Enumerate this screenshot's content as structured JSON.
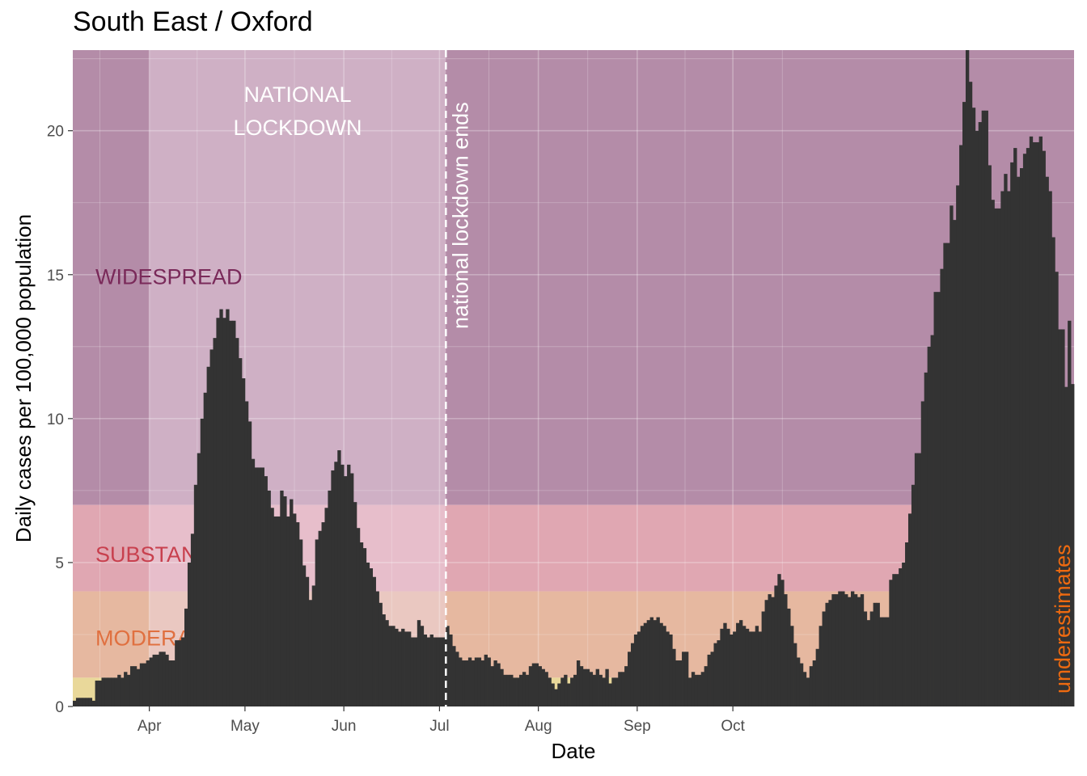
{
  "chart_data": {
    "type": "bar",
    "title": "South East / Oxford",
    "xlabel": "Date",
    "ylabel": "Daily cases per 100,000 population",
    "ylim": [
      0,
      22.8
    ],
    "yticks": [
      0,
      5,
      10,
      15,
      20
    ],
    "x_ticks": [
      "Apr",
      "May",
      "Jun",
      "Jul",
      "Aug",
      "Sep",
      "Oct"
    ],
    "grid": true,
    "bar_color": "#333333",
    "zones": [
      {
        "label": "WIDESPREAD",
        "from": 7,
        "to": 22.8,
        "color": "#b48ca8"
      },
      {
        "label": "SUBSTANTIAL",
        "from": 4,
        "to": 7,
        "color": "#e0a7b2"
      },
      {
        "label": "MODERATE",
        "from": 1,
        "to": 4,
        "color": "#e6b8a0"
      },
      {
        "label": "",
        "from": 0,
        "to": 1,
        "color": "#e9d89a"
      }
    ],
    "zone_label_colors": {
      "WIDESPREAD": "#7a2a5a",
      "SUBSTANTIAL": "#c8404e",
      "MODERATE": "#e07040"
    },
    "lockdown": {
      "label_line1": "NATIONAL",
      "label_line2": "LOCKDOWN",
      "start_day": 24,
      "end_day": 117,
      "overlay_color": "#f0dce8"
    },
    "annotations": {
      "lockdown_end": "national lockdown ends",
      "underestimates": "underestimates",
      "underestimates_color": "#ee6a10"
    },
    "start_date": "2020-03-08",
    "values": [
      0.2,
      0.3,
      0.3,
      0.3,
      0.3,
      0.3,
      0.2,
      0.9,
      0.9,
      1.0,
      1.0,
      1.0,
      1.0,
      1.0,
      1.1,
      1.0,
      1.2,
      1.1,
      1.4,
      1.4,
      1.3,
      1.5,
      1.5,
      1.6,
      1.7,
      1.8,
      1.8,
      1.9,
      1.9,
      1.8,
      1.6,
      1.6,
      2.3,
      2.3,
      2.4,
      3.4,
      5.0,
      6.0,
      7.7,
      8.8,
      10.0,
      10.9,
      11.8,
      12.4,
      12.8,
      13.5,
      13.8,
      13.5,
      13.8,
      13.4,
      13.4,
      12.8,
      12.1,
      11.4,
      10.6,
      9.9,
      8.6,
      8.3,
      8.3,
      8.3,
      8.0,
      7.5,
      6.9,
      6.6,
      6.6,
      7.5,
      7.3,
      6.6,
      7.2,
      6.7,
      6.4,
      5.8,
      4.9,
      4.5,
      3.7,
      4.2,
      5.8,
      6.1,
      6.4,
      6.9,
      7.5,
      8.2,
      8.5,
      8.9,
      8.4,
      8.0,
      8.4,
      8.1,
      7.1,
      6.2,
      5.7,
      5.5,
      5.0,
      4.8,
      4.5,
      4.0,
      3.6,
      3.2,
      3.0,
      2.8,
      2.8,
      2.7,
      2.6,
      2.7,
      2.6,
      2.6,
      2.4,
      2.4,
      3.0,
      2.8,
      2.5,
      2.4,
      2.5,
      2.4,
      2.4,
      2.4,
      2.4,
      2.8,
      2.5,
      2.1,
      1.9,
      1.7,
      1.6,
      1.6,
      1.7,
      1.6,
      1.7,
      1.7,
      1.6,
      1.8,
      1.7,
      1.4,
      1.6,
      1.5,
      1.3,
      1.1,
      1.1,
      1.1,
      1.0,
      1.0,
      1.1,
      1.2,
      1.1,
      1.4,
      1.5,
      1.5,
      1.4,
      1.3,
      1.2,
      1.0,
      0.8,
      0.6,
      0.8,
      1.0,
      1.1,
      0.8,
      1.0,
      1.1,
      1.6,
      1.4,
      1.3,
      1.3,
      1.2,
      1.1,
      1.3,
      1.1,
      1.0,
      1.3,
      0.8,
      1.0,
      1.0,
      1.2,
      1.2,
      1.4,
      1.9,
      2.2,
      2.5,
      2.6,
      2.8,
      2.9,
      3.0,
      3.1,
      3.0,
      3.1,
      2.9,
      2.8,
      2.6,
      2.5,
      2.0,
      1.6,
      1.6,
      1.9,
      1.9,
      1.0,
      1.2,
      1.1,
      1.1,
      1.2,
      1.4,
      1.8,
      1.9,
      2.2,
      2.3,
      2.7,
      2.9,
      2.7,
      2.5,
      2.6,
      2.9,
      3.0,
      2.8,
      2.7,
      2.6,
      2.6,
      2.8,
      2.6,
      3.3,
      3.7,
      3.9,
      3.8,
      4.2,
      4.6,
      4.4,
      3.9,
      3.4,
      2.8,
      2.2,
      1.7,
      1.5,
      1.2,
      1.0,
      1.4,
      1.6,
      2.0,
      2.8,
      3.3,
      3.6,
      3.7,
      3.9,
      3.9,
      4.0,
      4.0,
      3.9,
      3.8,
      4.0,
      3.9,
      3.8,
      3.9,
      3.3,
      3.0,
      3.3,
      3.6,
      3.6,
      3.1,
      3.1,
      3.1,
      4.4,
      4.6,
      4.6,
      4.8,
      5.0,
      5.7,
      6.7,
      7.7,
      8.8,
      8.8,
      10.6,
      11.6,
      12.5,
      12.9,
      14.4,
      14.4,
      15.2,
      16.1,
      16.1,
      17.4,
      16.9,
      18.1,
      19.5,
      21.0,
      22.8,
      21.7,
      20.8,
      20.0,
      20.3,
      20.7,
      20.7,
      18.8,
      17.6,
      17.3,
      17.3,
      17.9,
      18.5,
      17.9,
      18.9,
      19.4,
      18.4,
      18.7,
      19.2,
      19.4,
      19.8,
      19.6,
      19.6,
      19.8,
      19.3,
      18.4,
      17.9,
      16.3,
      15.1,
      13.1,
      13.1,
      11.1,
      13.4,
      11.2
    ]
  }
}
